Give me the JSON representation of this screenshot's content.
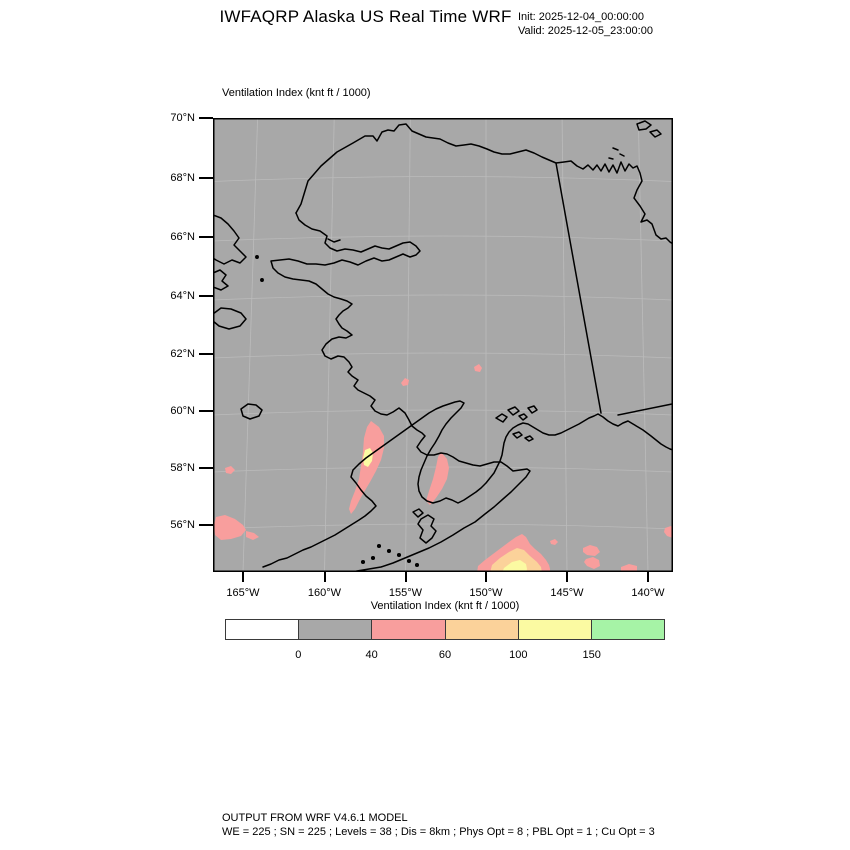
{
  "header": {
    "title": "IWFAQRP Alaska US Real Time WRF",
    "init_label": "Init: 2025-12-04_00:00:00",
    "valid_label": "Valid: 2025-12-05_23:00:00"
  },
  "map": {
    "field_label": "Ventilation Index   (knt ft / 1000)",
    "lat_ticks": [
      "70°N",
      "68°N",
      "66°N",
      "64°N",
      "62°N",
      "60°N",
      "58°N",
      "56°N"
    ],
    "lon_ticks": [
      "165°W",
      "160°W",
      "155°W",
      "150°W",
      "145°W",
      "140°W"
    ]
  },
  "palette": {
    "background_gray": "#a8a8a8",
    "coastline": "#000000",
    "graticule": "#c6c6c6",
    "band_below_0": "#ffffff",
    "band_0_40": "#a8a8a8",
    "band_40_60": "#f89e9d",
    "band_60_100": "#fbd29a",
    "band_100_150": "#fbfaa2",
    "band_above_150": "#a6f3a6"
  },
  "colorbar": {
    "title": "Ventilation Index  (knt ft / 1000)",
    "cells": [
      "#ffffff",
      "#a8a8a8",
      "#f89e9d",
      "#fbd29a",
      "#fbfaa2",
      "#a6f3a6"
    ],
    "boundary_labels": [
      "0",
      "40",
      "60",
      "100",
      "150"
    ]
  },
  "footer": {
    "line1": "OUTPUT FROM WRF V4.6.1 MODEL",
    "line2": "WE = 225 ; SN = 225 ; Levels = 38 ; Dis = 8km ; Phys Opt = 8 ; PBL Opt = 1 ; Cu Opt = 3"
  }
}
